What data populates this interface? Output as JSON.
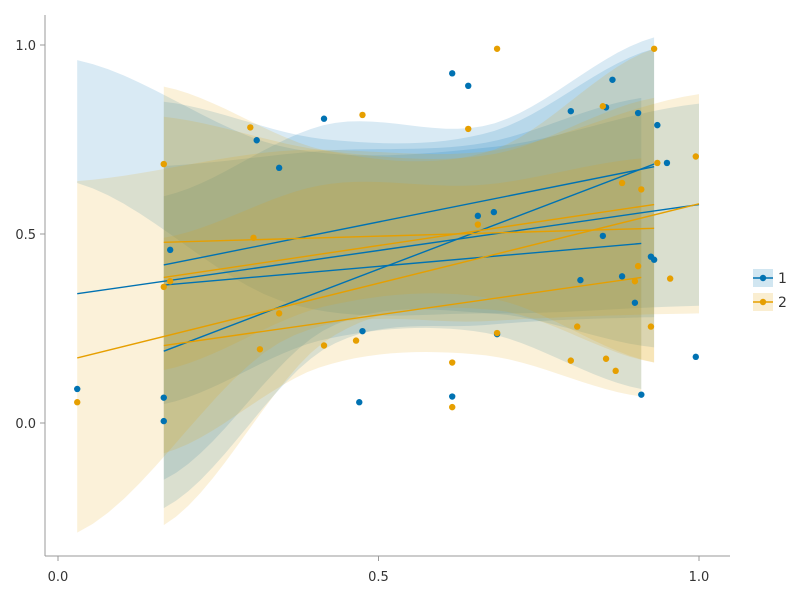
{
  "chart_data": {
    "type": "scatter",
    "title": "",
    "xlabel": "",
    "ylabel": "",
    "xlim": [
      -0.02,
      1.04
    ],
    "ylim": [
      -0.36,
      1.08
    ],
    "grid": false,
    "legend_placement": "right",
    "x_ticks": [
      {
        "value": 0.0,
        "label": "0.0"
      },
      {
        "value": 0.5,
        "label": "0.5"
      },
      {
        "value": 1.0,
        "label": "1.0"
      }
    ],
    "y_ticks": [
      {
        "value": 0.0,
        "label": "0.0"
      },
      {
        "value": 0.5,
        "label": "0.5"
      },
      {
        "value": 1.0,
        "label": "1.0"
      }
    ],
    "series": [
      {
        "name": "1",
        "color": "#0072B2",
        "points": [
          [
            0.03,
            0.09
          ],
          [
            0.165,
            0.067
          ],
          [
            0.165,
            0.005
          ],
          [
            0.175,
            0.458
          ],
          [
            0.31,
            0.748
          ],
          [
            0.345,
            0.675
          ],
          [
            0.415,
            0.805
          ],
          [
            0.47,
            0.055
          ],
          [
            0.475,
            0.243
          ],
          [
            0.615,
            0.07
          ],
          [
            0.615,
            0.925
          ],
          [
            0.64,
            0.892
          ],
          [
            0.655,
            0.548
          ],
          [
            0.68,
            0.558
          ],
          [
            0.685,
            0.235
          ],
          [
            0.8,
            0.825
          ],
          [
            0.815,
            0.378
          ],
          [
            0.85,
            0.495
          ],
          [
            0.855,
            0.835
          ],
          [
            0.865,
            0.908
          ],
          [
            0.88,
            0.388
          ],
          [
            0.9,
            0.318
          ],
          [
            0.905,
            0.82
          ],
          [
            0.91,
            0.075
          ],
          [
            0.925,
            0.44
          ],
          [
            0.93,
            0.432
          ],
          [
            0.935,
            0.788
          ],
          [
            0.95,
            0.688
          ],
          [
            0.995,
            0.175
          ]
        ]
      },
      {
        "name": "2",
        "color": "#E69F00",
        "points": [
          [
            0.03,
            0.055
          ],
          [
            0.165,
            0.685
          ],
          [
            0.165,
            0.36
          ],
          [
            0.175,
            0.375
          ],
          [
            0.3,
            0.782
          ],
          [
            0.305,
            0.49
          ],
          [
            0.315,
            0.195
          ],
          [
            0.345,
            0.29
          ],
          [
            0.415,
            0.205
          ],
          [
            0.465,
            0.218
          ],
          [
            0.475,
            0.815
          ],
          [
            0.615,
            0.16
          ],
          [
            0.615,
            0.042
          ],
          [
            0.64,
            0.778
          ],
          [
            0.655,
            0.525
          ],
          [
            0.685,
            0.238
          ],
          [
            0.685,
            0.99
          ],
          [
            0.8,
            0.165
          ],
          [
            0.81,
            0.255
          ],
          [
            0.85,
            0.838
          ],
          [
            0.855,
            0.17
          ],
          [
            0.87,
            0.138
          ],
          [
            0.88,
            0.635
          ],
          [
            0.9,
            0.375
          ],
          [
            0.905,
            0.415
          ],
          [
            0.91,
            0.618
          ],
          [
            0.925,
            0.255
          ],
          [
            0.93,
            0.99
          ],
          [
            0.935,
            0.688
          ],
          [
            0.955,
            0.382
          ],
          [
            0.995,
            0.705
          ]
        ]
      }
    ],
    "fits": [
      {
        "series": "1",
        "color": "#0072B2",
        "x_range": [
          0.03,
          1.0
        ],
        "line": [
          0.342,
          0.578
        ],
        "band_lower": [
          0.635,
          0.32,
          0.29,
          0.31
        ],
        "band_upper": [
          0.96,
          0.73,
          0.73,
          0.845
        ]
      },
      {
        "series": "1",
        "color": "#0072B2",
        "x_range": [
          0.165,
          0.93
        ],
        "line": [
          0.19,
          0.685
        ],
        "band_lower": [
          -0.225,
          0.2,
          0.26,
          0.28
        ],
        "band_upper": [
          0.6,
          0.79,
          0.79,
          1.02
        ]
      },
      {
        "series": "1",
        "color": "#0072B2",
        "x_range": [
          0.165,
          0.91
        ],
        "line": [
          0.365,
          0.475
        ],
        "band_lower": [
          0.05,
          0.22,
          0.24,
          0.09
        ],
        "band_upper": [
          0.68,
          0.72,
          0.74,
          0.86
        ]
      },
      {
        "series": "1",
        "color": "#0072B2",
        "x_range": [
          0.165,
          0.93
        ],
        "line": [
          0.418,
          0.678
        ],
        "band_lower": [
          -0.15,
          0.25,
          0.29,
          0.2
        ],
        "band_upper": [
          0.85,
          0.75,
          0.77,
          0.99
        ]
      },
      {
        "series": "2",
        "color": "#E69F00",
        "x_range": [
          0.03,
          1.0
        ],
        "line": [
          0.172,
          0.58
        ],
        "band_lower": [
          -0.29,
          0.22,
          0.27,
          0.29
        ],
        "band_upper": [
          0.64,
          0.72,
          0.72,
          0.87
        ]
      },
      {
        "series": "2",
        "color": "#E69F00",
        "x_range": [
          0.165,
          0.93
        ],
        "line": [
          0.478,
          0.515
        ],
        "band_lower": [
          0.14,
          0.31,
          0.33,
          0.16
        ],
        "band_upper": [
          0.81,
          0.72,
          0.71,
          0.86
        ]
      },
      {
        "series": "2",
        "color": "#E69F00",
        "x_range": [
          0.165,
          0.91
        ],
        "line": [
          0.205,
          0.385
        ],
        "band_lower": [
          -0.08,
          0.15,
          0.18,
          0.07
        ],
        "band_upper": [
          0.49,
          0.63,
          0.63,
          0.7
        ]
      },
      {
        "series": "2",
        "color": "#E69F00",
        "x_range": [
          0.165,
          0.93
        ],
        "line": [
          0.385,
          0.578
        ],
        "band_lower": [
          -0.27,
          0.22,
          0.3,
          0.16
        ],
        "band_upper": [
          0.89,
          0.72,
          0.72,
          0.99
        ]
      }
    ],
    "legend": [
      {
        "label": "1",
        "color": "#0072B2"
      },
      {
        "label": "2",
        "color": "#E69F00"
      }
    ]
  }
}
